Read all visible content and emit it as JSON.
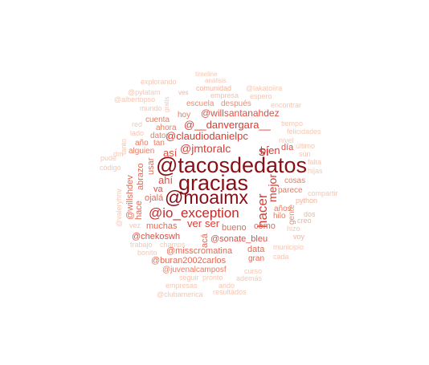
{
  "words": [
    {
      "text": "@tacosdedatos",
      "color": "#8b0e15"
    },
    {
      "text": "gracias",
      "color": "#8b0e15"
    },
    {
      "text": "@moaimx",
      "color": "#8b0e15"
    },
    {
      "text": "@io_exception",
      "color": "#c42a2a"
    },
    {
      "text": "sí",
      "color": "#c42a2a"
    },
    {
      "text": "hacer",
      "color": "#d63d36"
    },
    {
      "text": "mejor",
      "color": "#d63d36"
    },
    {
      "text": "@jmtoralc",
      "color": "#d63d36"
    },
    {
      "text": "@claudiodanielpc",
      "color": "#d63d36"
    },
    {
      "text": "@__danvergara__",
      "color": "#d63d36"
    },
    {
      "text": "@willsantanahdez",
      "color": "#e04f44"
    },
    {
      "text": "ver",
      "color": "#d63d36"
    },
    {
      "text": "ser",
      "color": "#d63d36"
    },
    {
      "text": "bien",
      "color": "#d63d36"
    },
    {
      "text": "día",
      "color": "#e04f44"
    },
    {
      "text": "así",
      "color": "#e04f44"
    },
    {
      "text": "ahí",
      "color": "#e04f44"
    },
    {
      "text": "va",
      "color": "#e04f44"
    },
    {
      "text": "@willshdev",
      "color": "#e36a55"
    },
    {
      "text": "abrazo",
      "color": "#e36a55"
    },
    {
      "text": "usar",
      "color": "#e36a55"
    },
    {
      "text": "hace",
      "color": "#e36a55"
    },
    {
      "text": "ojalá",
      "color": "#e36a55"
    },
    {
      "text": "muchas",
      "color": "#e36a55"
    },
    {
      "text": "bueno",
      "color": "#e36a55"
    },
    {
      "text": "como",
      "color": "#e36a55"
    },
    {
      "text": "@chekoswh",
      "color": "#e04f44"
    },
    {
      "text": "acá",
      "color": "#e36a55"
    },
    {
      "text": "@sonate_bleu",
      "color": "#e04f44"
    },
    {
      "text": "@misscromatina",
      "color": "#e36a55"
    },
    {
      "text": "data",
      "color": "#e36a55"
    },
    {
      "text": "@buran2002carlos",
      "color": "#e36a55"
    },
    {
      "text": "gran",
      "color": "#e36a55"
    },
    {
      "text": "@juvenalcamposf",
      "color": "#e87b62"
    },
    {
      "text": "años",
      "color": "#e87b62"
    },
    {
      "text": "gente",
      "color": "#ec8c70"
    },
    {
      "text": "hilo",
      "color": "#e87b62"
    },
    {
      "text": "parece",
      "color": "#e87b62"
    },
    {
      "text": "cosas",
      "color": "#e87b62"
    },
    {
      "text": "alguien",
      "color": "#e87b62"
    },
    {
      "text": "año",
      "color": "#e87b62"
    },
    {
      "text": "tan",
      "color": "#e87b62"
    },
    {
      "text": "datos",
      "color": "#e87b62"
    },
    {
      "text": "ahora",
      "color": "#e87b62"
    },
    {
      "text": "cuenta",
      "color": "#e87b62"
    },
    {
      "text": "hoy",
      "color": "#e87b62"
    },
    {
      "text": "escuela",
      "color": "#ec8c70"
    },
    {
      "text": "después",
      "color": "#ec8c70"
    },
    {
      "text": "comunidad",
      "color": "#f4b29a"
    },
    {
      "text": "empresa",
      "color": "#f6c1ab"
    },
    {
      "text": "timeline",
      "color": "#f6c6b2"
    },
    {
      "text": "análisis",
      "color": "#f6c6b2"
    },
    {
      "text": "explorando",
      "color": "#f6c6b2"
    },
    {
      "text": "@pylatam",
      "color": "#f6c6b2"
    },
    {
      "text": "@albertopso",
      "color": "#f6c6b2"
    },
    {
      "text": "ves",
      "color": "#f4b29a"
    },
    {
      "text": "gratis",
      "color": "#f6c6b2"
    },
    {
      "text": "mundo",
      "color": "#f6c6b2"
    },
    {
      "text": "@lakatoiira",
      "color": "#f6c6b2"
    },
    {
      "text": "espero",
      "color": "#f6c6b2"
    },
    {
      "text": "encontrar",
      "color": "#f6c6b2"
    },
    {
      "text": "tiempo",
      "color": "#f6c6b2"
    },
    {
      "text": "felicidades",
      "color": "#f6c6b2"
    },
    {
      "text": "nivel",
      "color": "#f6c6b2"
    },
    {
      "text": "último",
      "color": "#f6c6b2"
    },
    {
      "text": "sún",
      "color": "#f6c6b2"
    },
    {
      "text": "red",
      "color": "#f6c6b2"
    },
    {
      "text": "lado",
      "color": "#f6c6b2"
    },
    {
      "text": "pude",
      "color": "#f6c6b2"
    },
    {
      "text": "código",
      "color": "#f6c6b2"
    },
    {
      "text": "dm",
      "color": "#f6c6b2"
    },
    {
      "text": "tanto",
      "color": "#f6c6b2"
    },
    {
      "text": "@valeryhnv",
      "color": "#f6c6b2"
    },
    {
      "text": "vez",
      "color": "#f6c6b2"
    },
    {
      "text": "trabajo",
      "color": "#f6c6b2"
    },
    {
      "text": "champs",
      "color": "#f6c6b2"
    },
    {
      "text": "bonito",
      "color": "#f6c6b2"
    },
    {
      "text": "hijas",
      "color": "#f6c6b2"
    },
    {
      "text": "compartir",
      "color": "#f6c6b2"
    },
    {
      "text": "python",
      "color": "#f4b29a"
    },
    {
      "text": "dos",
      "color": "#f4b29a"
    },
    {
      "text": "creo",
      "color": "#f4b29a"
    },
    {
      "text": "voy",
      "color": "#f4b29a"
    },
    {
      "text": "hizo",
      "color": "#f6c6b2"
    },
    {
      "text": "municipio",
      "color": "#f6c6b2"
    },
    {
      "text": "cada",
      "color": "#f6c6b2"
    },
    {
      "text": "curso",
      "color": "#f6c6b2"
    },
    {
      "text": "seguir",
      "color": "#f6c6b2"
    },
    {
      "text": "pronto",
      "color": "#f6c6b2"
    },
    {
      "text": "además",
      "color": "#f6c6b2"
    },
    {
      "text": "empresas",
      "color": "#f6c6b2"
    },
    {
      "text": "ando",
      "color": "#f6c6b2"
    },
    {
      "text": "resultados",
      "color": "#f6c6b2"
    },
    {
      "text": "@clubamerica",
      "color": "#f6c6b2"
    },
    {
      "text": "falta",
      "color": "#f6c6b2"
    }
  ]
}
